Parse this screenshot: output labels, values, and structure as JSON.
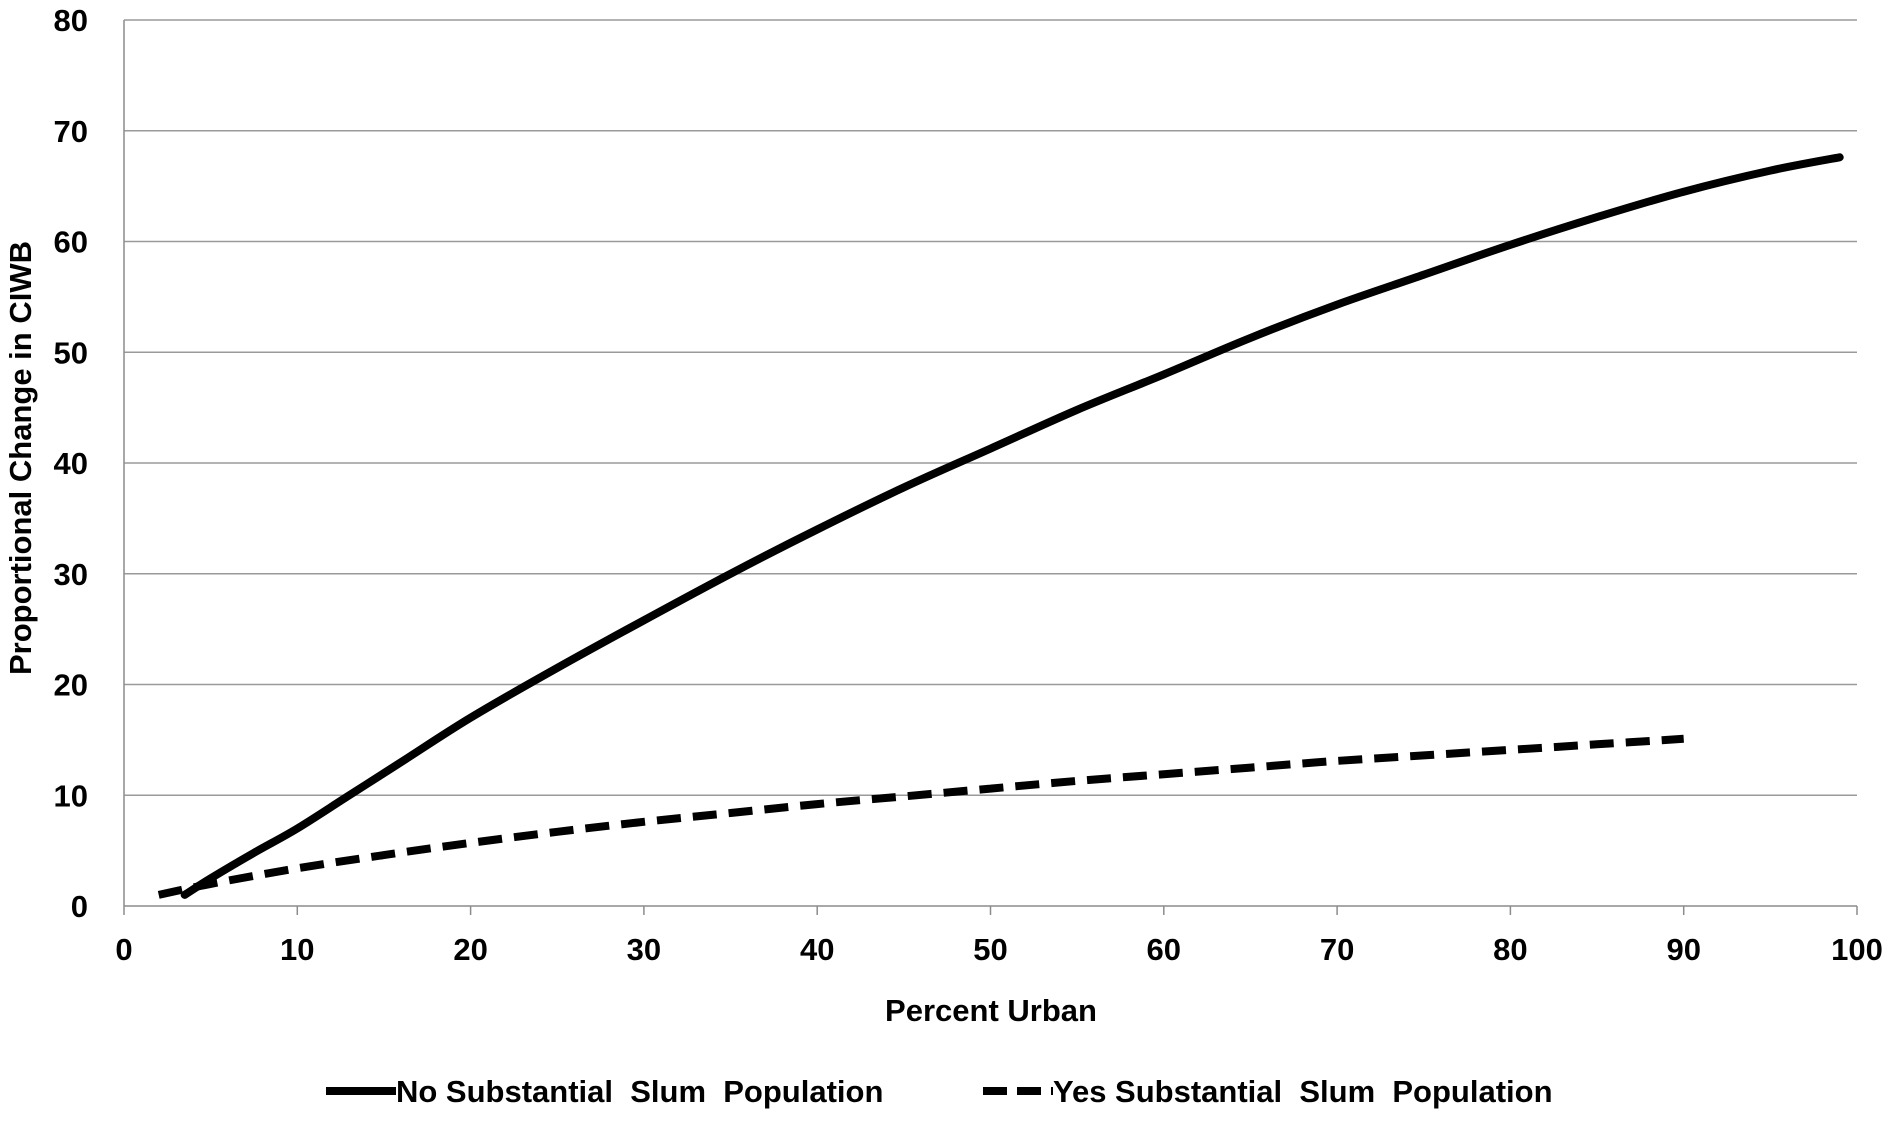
{
  "chart_data": {
    "type": "line",
    "title": "",
    "xlabel": "Percent Urban",
    "ylabel": "Proportional Change in CIWB",
    "xlim": [
      0,
      100
    ],
    "ylim": [
      0,
      80
    ],
    "x_ticks": [
      0,
      10,
      20,
      30,
      40,
      50,
      60,
      70,
      80,
      90,
      100
    ],
    "y_ticks": [
      0,
      10,
      20,
      30,
      40,
      50,
      60,
      70,
      80
    ],
    "grid": "horizontal",
    "legend_position": "bottom",
    "series": [
      {
        "name": "No Substantial  Slum  Population",
        "style": "solid",
        "color": "#000000",
        "x": [
          3.5,
          5,
          7.5,
          10,
          13,
          16,
          20,
          25,
          30,
          35,
          40,
          45,
          50,
          55,
          60,
          65,
          70,
          75,
          80,
          85,
          90,
          95,
          99
        ],
        "y": [
          1,
          2.5,
          4.8,
          7,
          10,
          13,
          17,
          21.5,
          25.8,
          30,
          34,
          37.8,
          41.3,
          44.8,
          48,
          51.3,
          54.3,
          57,
          59.7,
          62.2,
          64.5,
          66.4,
          67.6
        ]
      },
      {
        "name": "Yes Substantial  Slum  Population",
        "style": "dashed",
        "color": "#000000",
        "x": [
          2,
          5,
          10,
          15,
          20,
          25,
          30,
          35,
          40,
          45,
          50,
          55,
          60,
          65,
          70,
          75,
          80,
          85,
          90
        ],
        "y": [
          1,
          2,
          3.4,
          4.6,
          5.7,
          6.7,
          7.6,
          8.4,
          9.2,
          9.9,
          10.6,
          11.3,
          11.9,
          12.5,
          13.1,
          13.6,
          14.1,
          14.6,
          15.1
        ]
      }
    ]
  }
}
